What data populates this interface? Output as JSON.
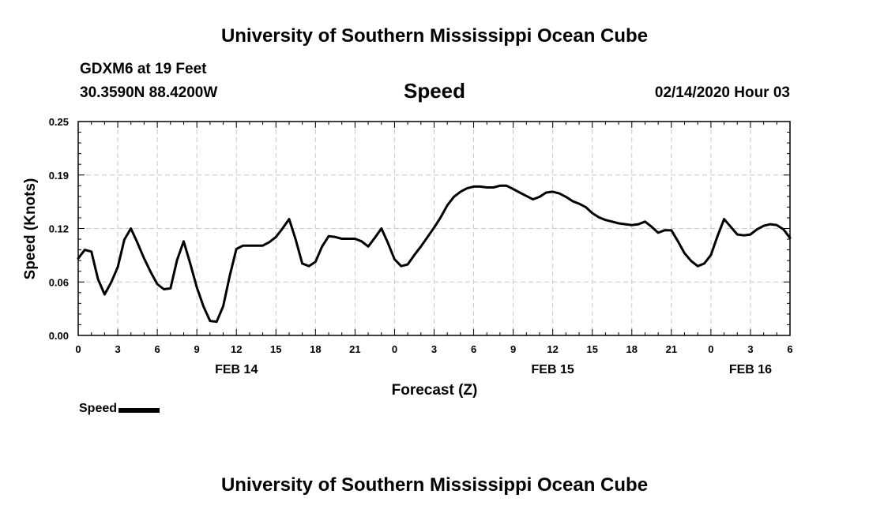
{
  "header": {
    "title": "University of Southern Mississippi Ocean Cube",
    "station": "GDXM6 at 19 Feet",
    "coords": "30.3590N 88.4200W",
    "plot_title": "Speed",
    "datetime": "02/14/2020 Hour 03"
  },
  "footer": {
    "title": "University of Southern Mississippi Ocean Cube"
  },
  "legend": {
    "label": "Speed"
  },
  "colors": {
    "line": "#000000",
    "grid": "#c8c8c8",
    "axis": "#000000"
  },
  "chart_data": {
    "type": "line",
    "title": "Speed",
    "xlabel": "Forecast (Z)",
    "ylabel": "Speed (Knots)",
    "xlim": [
      0,
      54
    ],
    "ylim": [
      0.0,
      0.25
    ],
    "yticks": [
      "0.00",
      "0.06",
      "0.12",
      "0.19",
      "0.25"
    ],
    "ytick_values": [
      0.0,
      0.0625,
      0.125,
      0.1875,
      0.25
    ],
    "xtick_labels": [
      "0",
      "3",
      "6",
      "9",
      "12",
      "15",
      "18",
      "21",
      "0",
      "3",
      "6",
      "9",
      "12",
      "15",
      "18",
      "21",
      "0",
      "3",
      "6"
    ],
    "day_labels": [
      {
        "label": "FEB 14",
        "hour": 12
      },
      {
        "label": "FEB 15",
        "hour": 36
      },
      {
        "label": "FEB 16",
        "hour": 51
      }
    ],
    "grid": true,
    "series": [
      {
        "name": "Speed",
        "x": [
          0,
          0.5,
          1,
          1.5,
          2,
          2.5,
          3,
          3.5,
          4,
          4.5,
          5,
          5.5,
          6,
          6.5,
          7,
          7.5,
          8,
          8.5,
          9,
          9.5,
          10,
          10.5,
          11,
          11.5,
          12,
          12.5,
          13,
          13.5,
          14,
          14.5,
          15,
          15.5,
          16,
          16.5,
          17,
          17.5,
          18,
          18.5,
          19,
          19.5,
          20,
          20.5,
          21,
          21.5,
          22,
          22.5,
          23,
          23.5,
          24,
          24.5,
          25,
          25.5,
          26,
          26.5,
          27,
          27.5,
          28,
          28.5,
          29,
          29.5,
          30,
          30.5,
          31,
          31.5,
          32,
          32.5,
          33,
          33.5,
          34,
          34.5,
          35,
          35.5,
          36,
          36.5,
          37,
          37.5,
          38,
          38.5,
          39,
          39.5,
          40,
          40.5,
          41,
          41.5,
          42,
          42.5,
          43,
          43.5,
          44,
          44.5,
          45,
          45.5,
          46,
          46.5,
          47,
          47.5,
          48,
          48.5,
          49,
          49.5,
          50,
          50.5,
          51,
          51.5,
          52,
          52.5,
          53,
          53.5,
          54
        ],
        "values": [
          0.09,
          0.1,
          0.098,
          0.066,
          0.048,
          0.062,
          0.08,
          0.112,
          0.125,
          0.108,
          0.09,
          0.074,
          0.06,
          0.054,
          0.055,
          0.088,
          0.11,
          0.084,
          0.056,
          0.034,
          0.017,
          0.016,
          0.034,
          0.07,
          0.101,
          0.105,
          0.105,
          0.105,
          0.105,
          0.109,
          0.115,
          0.125,
          0.136,
          0.112,
          0.084,
          0.081,
          0.086,
          0.104,
          0.116,
          0.115,
          0.113,
          0.113,
          0.113,
          0.11,
          0.104,
          0.114,
          0.125,
          0.108,
          0.089,
          0.081,
          0.083,
          0.094,
          0.104,
          0.115,
          0.126,
          0.138,
          0.152,
          0.162,
          0.168,
          0.172,
          0.174,
          0.174,
          0.173,
          0.173,
          0.175,
          0.175,
          0.171,
          0.167,
          0.163,
          0.159,
          0.162,
          0.167,
          0.168,
          0.166,
          0.162,
          0.157,
          0.154,
          0.15,
          0.143,
          0.138,
          0.135,
          0.133,
          0.131,
          0.13,
          0.129,
          0.13,
          0.133,
          0.127,
          0.12,
          0.123,
          0.123,
          0.11,
          0.096,
          0.087,
          0.081,
          0.084,
          0.094,
          0.116,
          0.136,
          0.127,
          0.118,
          0.117,
          0.118,
          0.124,
          0.128,
          0.13,
          0.129,
          0.124,
          0.114
        ]
      }
    ]
  }
}
